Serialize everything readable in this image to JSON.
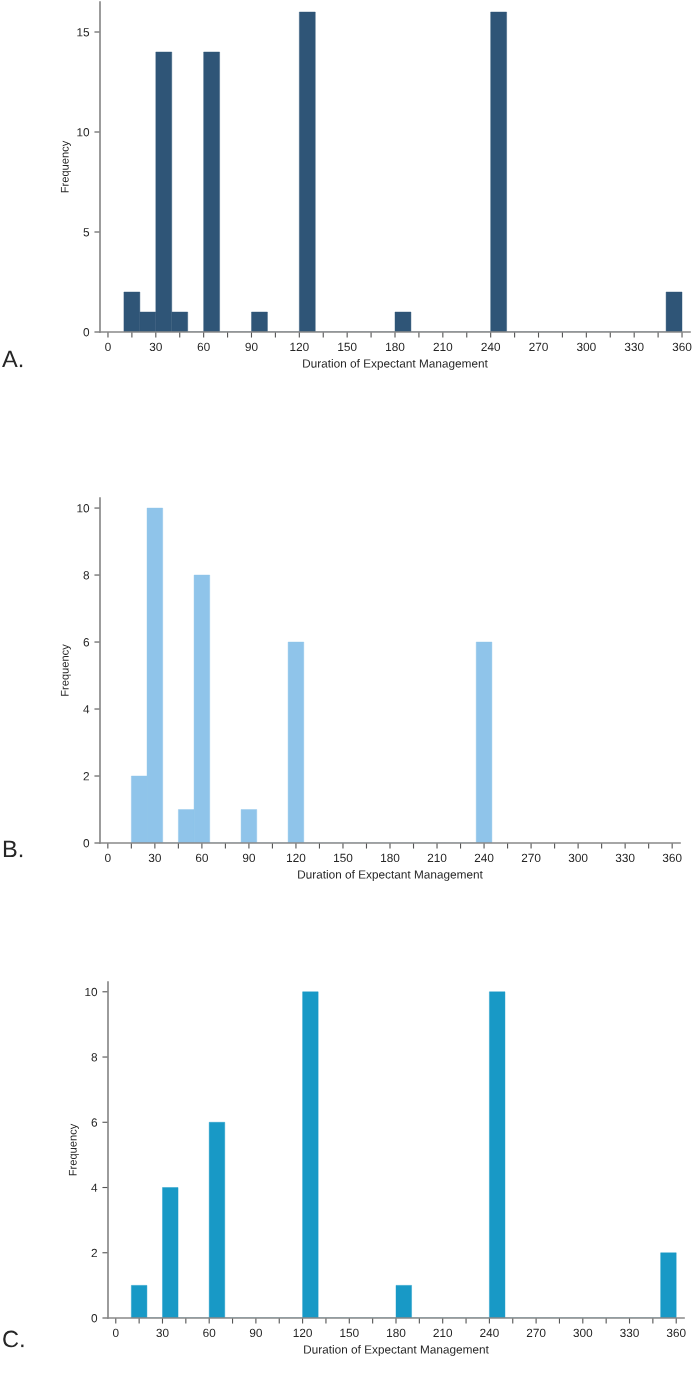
{
  "chart_data": [
    {
      "type": "histogram",
      "xlabel": "Duration of Expectant Management",
      "ylabel": "Frequency",
      "color": "#2f5577",
      "bins": [
        10,
        20,
        30,
        40,
        50,
        60,
        70,
        80,
        90,
        100,
        110,
        120,
        130,
        140,
        150,
        160,
        170,
        180,
        190,
        200,
        210,
        220,
        230,
        240,
        250,
        260,
        270,
        280,
        290,
        300,
        310,
        320,
        330,
        340,
        350,
        360
      ],
      "values": [
        2,
        1,
        14,
        1,
        0,
        14,
        0,
        0,
        1,
        0,
        0,
        16,
        0,
        0,
        0,
        0,
        0,
        1,
        0,
        0,
        0,
        0,
        0,
        16,
        0,
        0,
        0,
        0,
        0,
        0,
        0,
        0,
        0,
        0,
        2
      ],
      "xlim": [
        -5,
        365
      ],
      "ylim": [
        0,
        16.5
      ],
      "xticks": [
        0,
        {
          "value": 15,
          "label": null
        },
        30,
        {
          "value": 45,
          "label": null
        },
        60,
        {
          "value": 75,
          "label": null
        },
        90,
        {
          "value": 105,
          "label": null
        },
        120,
        {
          "value": 135,
          "label": null
        },
        150,
        {
          "value": 165,
          "label": null
        },
        180,
        {
          "value": 195,
          "label": null
        },
        210,
        {
          "value": 225,
          "label": null
        },
        240,
        {
          "value": 255,
          "label": null
        },
        270,
        {
          "value": 285,
          "label": null
        },
        300,
        {
          "value": 315,
          "label": null
        },
        330,
        {
          "value": 345,
          "label": null
        },
        360
      ],
      "yticks": [
        0,
        5,
        10,
        15
      ],
      "annotations": [
        "A."
      ]
    },
    {
      "type": "histogram",
      "xlabel": "Duration of Expectant Management",
      "ylabel": "Frequency",
      "color": "#8fc4ea",
      "bins": [
        15,
        25,
        35,
        45,
        55,
        65,
        75,
        85,
        95,
        105,
        115,
        125,
        135,
        145,
        155,
        165,
        175,
        185,
        195,
        205,
        215,
        225,
        235,
        245
      ],
      "values": [
        2,
        10,
        0,
        1,
        8,
        0,
        0,
        1,
        0,
        0,
        6,
        0,
        0,
        0,
        0,
        0,
        0,
        0,
        0,
        0,
        0,
        0,
        6
      ],
      "xlim": [
        -5,
        365
      ],
      "ylim": [
        0,
        10.3
      ],
      "xticks": [
        0,
        {
          "value": 15,
          "label": null
        },
        30,
        {
          "value": 45,
          "label": null
        },
        60,
        {
          "value": 75,
          "label": null
        },
        90,
        {
          "value": 105,
          "label": null
        },
        120,
        {
          "value": 135,
          "label": null
        },
        150,
        {
          "value": 165,
          "label": null
        },
        180,
        {
          "value": 195,
          "label": null
        },
        210,
        {
          "value": 225,
          "label": null
        },
        240,
        {
          "value": 255,
          "label": null
        },
        270,
        {
          "value": 285,
          "label": null
        },
        300,
        {
          "value": 315,
          "label": null
        },
        330,
        {
          "value": 345,
          "label": null
        },
        360
      ],
      "yticks": [
        0,
        2,
        4,
        6,
        8,
        10
      ],
      "annotations": [
        "B."
      ]
    },
    {
      "type": "histogram",
      "xlabel": "Duration of Expectant Management",
      "ylabel": "Frequency",
      "color": "#1899c6",
      "bins": [
        10,
        20,
        30,
        40,
        50,
        60,
        70,
        80,
        90,
        100,
        110,
        120,
        130,
        140,
        150,
        160,
        170,
        180,
        190,
        200,
        210,
        220,
        230,
        240,
        250,
        260,
        270,
        280,
        290,
        300,
        310,
        320,
        330,
        340,
        350,
        360
      ],
      "values": [
        1,
        0,
        4,
        0,
        0,
        6,
        0,
        0,
        0,
        0,
        0,
        10,
        0,
        0,
        0,
        0,
        0,
        1,
        0,
        0,
        0,
        0,
        0,
        10,
        0,
        0,
        0,
        0,
        0,
        0,
        0,
        0,
        0,
        0,
        2
      ],
      "xlim": [
        -5,
        365
      ],
      "ylim": [
        0,
        10.3
      ],
      "xticks": [
        0,
        {
          "value": 15,
          "label": null
        },
        30,
        {
          "value": 45,
          "label": null
        },
        60,
        {
          "value": 75,
          "label": null
        },
        90,
        {
          "value": 105,
          "label": null
        },
        120,
        {
          "value": 135,
          "label": null
        },
        150,
        {
          "value": 165,
          "label": null
        },
        180,
        {
          "value": 195,
          "label": null
        },
        210,
        {
          "value": 225,
          "label": null
        },
        240,
        {
          "value": 255,
          "label": null
        },
        270,
        {
          "value": 285,
          "label": null
        },
        300,
        {
          "value": 315,
          "label": null
        },
        330,
        {
          "value": 345,
          "label": null
        },
        360
      ],
      "yticks": [
        0,
        2,
        4,
        6,
        8,
        10
      ],
      "annotations": [
        "C."
      ]
    }
  ]
}
